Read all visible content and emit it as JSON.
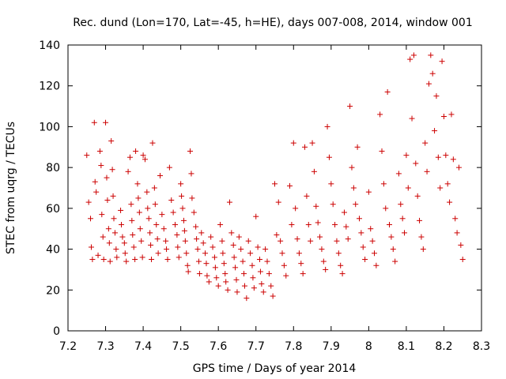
{
  "chart_data": {
    "type": "scatter",
    "title": "Rec. dund (Lon=170, Lat=-45, h=HE), days 007-008, 2014, window 001",
    "xlabel": "GPS time / Days of year 2014",
    "ylabel": "STEC from uqrg / TECUs",
    "xlim": [
      7.2,
      8.3
    ],
    "ylim": [
      0,
      140
    ],
    "xticks": [
      7.2,
      7.3,
      7.4,
      7.5,
      7.6,
      7.7,
      7.8,
      7.9,
      8.0,
      8.1,
      8.2,
      8.3
    ],
    "xtick_labels": [
      "7.2",
      "7.3",
      "7.4",
      "7.5",
      "7.6",
      "7.7",
      "7.8",
      "7.9",
      "8",
      "8.1",
      "8.2",
      "8.3"
    ],
    "yticks": [
      0,
      20,
      40,
      60,
      80,
      100,
      120,
      140
    ],
    "ytick_labels": [
      "0",
      "20",
      "40",
      "60",
      "80",
      "100",
      "120",
      "140"
    ],
    "grid": false,
    "marker": "+",
    "color": "#cc0000",
    "series": [
      {
        "name": "STEC",
        "points": [
          [
            7.25,
            86
          ],
          [
            7.255,
            63
          ],
          [
            7.26,
            55
          ],
          [
            7.262,
            41
          ],
          [
            7.265,
            35
          ],
          [
            7.27,
            102
          ],
          [
            7.272,
            73
          ],
          [
            7.275,
            68
          ],
          [
            7.28,
            37
          ],
          [
            7.285,
            88
          ],
          [
            7.288,
            81
          ],
          [
            7.29,
            57
          ],
          [
            7.293,
            46
          ],
          [
            7.295,
            35
          ],
          [
            7.3,
            102
          ],
          [
            7.303,
            75
          ],
          [
            7.305,
            64
          ],
          [
            7.308,
            50
          ],
          [
            7.31,
            43
          ],
          [
            7.312,
            34
          ],
          [
            7.315,
            93
          ],
          [
            7.318,
            79
          ],
          [
            7.32,
            66
          ],
          [
            7.322,
            55
          ],
          [
            7.325,
            48
          ],
          [
            7.328,
            40
          ],
          [
            7.33,
            36
          ],
          [
            7.34,
            59
          ],
          [
            7.342,
            52
          ],
          [
            7.345,
            46
          ],
          [
            7.35,
            43
          ],
          [
            7.352,
            38
          ],
          [
            7.355,
            34
          ],
          [
            7.36,
            78
          ],
          [
            7.365,
            85
          ],
          [
            7.368,
            62
          ],
          [
            7.37,
            54
          ],
          [
            7.372,
            47
          ],
          [
            7.375,
            41
          ],
          [
            7.378,
            35
          ],
          [
            7.38,
            88
          ],
          [
            7.385,
            72
          ],
          [
            7.387,
            65
          ],
          [
            7.39,
            58
          ],
          [
            7.392,
            50
          ],
          [
            7.395,
            44
          ],
          [
            7.398,
            36
          ],
          [
            7.4,
            86
          ],
          [
            7.405,
            84
          ],
          [
            7.41,
            68
          ],
          [
            7.412,
            60
          ],
          [
            7.415,
            55
          ],
          [
            7.418,
            48
          ],
          [
            7.42,
            42
          ],
          [
            7.422,
            35
          ],
          [
            7.425,
            92
          ],
          [
            7.43,
            70
          ],
          [
            7.432,
            62
          ],
          [
            7.435,
            52
          ],
          [
            7.438,
            45
          ],
          [
            7.44,
            38
          ],
          [
            7.445,
            76
          ],
          [
            7.45,
            57
          ],
          [
            7.455,
            50
          ],
          [
            7.46,
            44
          ],
          [
            7.462,
            40
          ],
          [
            7.465,
            35
          ],
          [
            7.47,
            80
          ],
          [
            7.475,
            64
          ],
          [
            7.48,
            58
          ],
          [
            7.485,
            52
          ],
          [
            7.49,
            47
          ],
          [
            7.492,
            41
          ],
          [
            7.495,
            36
          ],
          [
            7.5,
            72
          ],
          [
            7.502,
            66
          ],
          [
            7.505,
            60
          ],
          [
            7.508,
            54
          ],
          [
            7.51,
            49
          ],
          [
            7.512,
            44
          ],
          [
            7.515,
            38
          ],
          [
            7.518,
            32
          ],
          [
            7.52,
            29
          ],
          [
            7.525,
            88
          ],
          [
            7.528,
            77
          ],
          [
            7.53,
            65
          ],
          [
            7.535,
            58
          ],
          [
            7.54,
            51
          ],
          [
            7.542,
            45
          ],
          [
            7.545,
            40
          ],
          [
            7.548,
            34
          ],
          [
            7.55,
            28
          ],
          [
            7.555,
            48
          ],
          [
            7.56,
            43
          ],
          [
            7.565,
            38
          ],
          [
            7.568,
            33
          ],
          [
            7.57,
            27
          ],
          [
            7.575,
            24
          ],
          [
            7.58,
            46
          ],
          [
            7.585,
            41
          ],
          [
            7.59,
            36
          ],
          [
            7.592,
            31
          ],
          [
            7.595,
            26
          ],
          [
            7.6,
            22
          ],
          [
            7.605,
            52
          ],
          [
            7.61,
            44
          ],
          [
            7.612,
            38
          ],
          [
            7.615,
            33
          ],
          [
            7.618,
            28
          ],
          [
            7.62,
            24
          ],
          [
            7.625,
            20
          ],
          [
            7.63,
            63
          ],
          [
            7.635,
            48
          ],
          [
            7.64,
            42
          ],
          [
            7.642,
            36
          ],
          [
            7.645,
            31
          ],
          [
            7.648,
            25
          ],
          [
            7.65,
            19
          ],
          [
            7.655,
            46
          ],
          [
            7.66,
            40
          ],
          [
            7.665,
            34
          ],
          [
            7.668,
            28
          ],
          [
            7.67,
            22
          ],
          [
            7.675,
            16
          ],
          [
            7.68,
            44
          ],
          [
            7.685,
            38
          ],
          [
            7.69,
            32
          ],
          [
            7.692,
            26
          ],
          [
            7.695,
            21
          ],
          [
            7.7,
            56
          ],
          [
            7.705,
            41
          ],
          [
            7.71,
            35
          ],
          [
            7.712,
            29
          ],
          [
            7.715,
            23
          ],
          [
            7.72,
            19
          ],
          [
            7.725,
            40
          ],
          [
            7.73,
            34
          ],
          [
            7.735,
            28
          ],
          [
            7.74,
            22
          ],
          [
            7.745,
            17
          ],
          [
            7.75,
            72
          ],
          [
            7.755,
            47
          ],
          [
            7.76,
            63
          ],
          [
            7.765,
            44
          ],
          [
            7.77,
            38
          ],
          [
            7.775,
            32
          ],
          [
            7.78,
            27
          ],
          [
            7.79,
            71
          ],
          [
            7.795,
            52
          ],
          [
            7.8,
            92
          ],
          [
            7.805,
            60
          ],
          [
            7.81,
            45
          ],
          [
            7.815,
            38
          ],
          [
            7.82,
            33
          ],
          [
            7.825,
            28
          ],
          [
            7.83,
            90
          ],
          [
            7.835,
            66
          ],
          [
            7.84,
            52
          ],
          [
            7.845,
            44
          ],
          [
            7.85,
            92
          ],
          [
            7.855,
            78
          ],
          [
            7.86,
            61
          ],
          [
            7.865,
            53
          ],
          [
            7.87,
            46
          ],
          [
            7.875,
            40
          ],
          [
            7.88,
            34
          ],
          [
            7.885,
            30
          ],
          [
            7.89,
            100
          ],
          [
            7.895,
            85
          ],
          [
            7.9,
            72
          ],
          [
            7.905,
            62
          ],
          [
            7.91,
            52
          ],
          [
            7.915,
            44
          ],
          [
            7.92,
            38
          ],
          [
            7.925,
            32
          ],
          [
            7.93,
            28
          ],
          [
            7.935,
            58
          ],
          [
            7.94,
            51
          ],
          [
            7.945,
            45
          ],
          [
            7.95,
            110
          ],
          [
            7.955,
            80
          ],
          [
            7.96,
            70
          ],
          [
            7.965,
            62
          ],
          [
            7.97,
            90
          ],
          [
            7.975,
            55
          ],
          [
            7.98,
            48
          ],
          [
            7.985,
            41
          ],
          [
            7.99,
            35
          ],
          [
            8.0,
            68
          ],
          [
            8.005,
            50
          ],
          [
            8.01,
            44
          ],
          [
            8.015,
            38
          ],
          [
            8.02,
            32
          ],
          [
            8.03,
            106
          ],
          [
            8.035,
            88
          ],
          [
            8.04,
            72
          ],
          [
            8.045,
            60
          ],
          [
            8.05,
            117
          ],
          [
            8.055,
            52
          ],
          [
            8.06,
            46
          ],
          [
            8.065,
            40
          ],
          [
            8.07,
            34
          ],
          [
            8.08,
            77
          ],
          [
            8.085,
            62
          ],
          [
            8.09,
            55
          ],
          [
            8.095,
            48
          ],
          [
            8.1,
            86
          ],
          [
            8.105,
            70
          ],
          [
            8.11,
            133
          ],
          [
            8.115,
            104
          ],
          [
            8.12,
            135
          ],
          [
            8.125,
            82
          ],
          [
            8.13,
            66
          ],
          [
            8.135,
            54
          ],
          [
            8.14,
            46
          ],
          [
            8.145,
            40
          ],
          [
            8.15,
            92
          ],
          [
            8.155,
            78
          ],
          [
            8.16,
            121
          ],
          [
            8.165,
            135
          ],
          [
            8.17,
            126
          ],
          [
            8.175,
            98
          ],
          [
            8.18,
            115
          ],
          [
            8.185,
            85
          ],
          [
            8.19,
            70
          ],
          [
            8.195,
            132
          ],
          [
            8.2,
            105
          ],
          [
            8.205,
            86
          ],
          [
            8.21,
            72
          ],
          [
            8.215,
            63
          ],
          [
            8.22,
            106
          ],
          [
            8.225,
            84
          ],
          [
            8.23,
            55
          ],
          [
            8.235,
            48
          ],
          [
            8.24,
            80
          ],
          [
            8.245,
            42
          ],
          [
            8.25,
            35
          ]
        ]
      }
    ]
  }
}
